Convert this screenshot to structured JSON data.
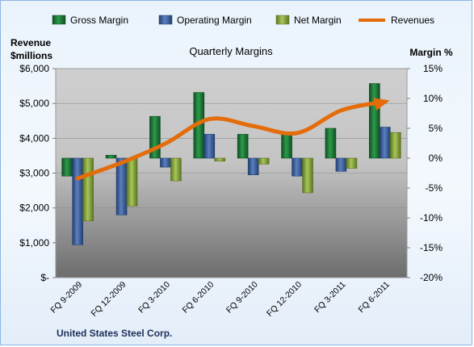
{
  "chart_data": {
    "type": "bar",
    "title": "Quarterly Margins",
    "company": "United States Steel Corp.",
    "categories": [
      "FQ 9-2009",
      "FQ 12-2009",
      "FQ 3-2010",
      "FQ 6-2010",
      "FQ 9-2010",
      "FQ 12-2010",
      "FQ 3-2011",
      "FQ 6-2011"
    ],
    "left_axis": {
      "label_line1": "Revenue",
      "label_line2": "$millions",
      "ticks": [
        "$-",
        "$1,000",
        "$2,000",
        "$3,000",
        "$4,000",
        "$5,000",
        "$6,000"
      ],
      "range": [
        0,
        6000
      ]
    },
    "right_axis": {
      "label": "Margin %",
      "ticks": [
        "-20%",
        "-15%",
        "-10%",
        "-5%",
        "0%",
        "5%",
        "10%",
        "15%"
      ],
      "range": [
        -20,
        15
      ]
    },
    "legend_position": "top",
    "grid": true,
    "series": [
      {
        "name": "Gross Margin",
        "kind": "bar",
        "axis": "right",
        "color": "#1e7b3a",
        "values": [
          -3.0,
          0.5,
          7.0,
          11.0,
          4.0,
          4.0,
          5.0,
          12.5
        ]
      },
      {
        "name": "Operating Margin",
        "kind": "bar",
        "axis": "right",
        "color": "#3a5e9e",
        "values": [
          -14.5,
          -9.5,
          -1.5,
          4.0,
          -2.8,
          -3.0,
          -2.2,
          5.2
        ]
      },
      {
        "name": "Net Margin",
        "kind": "bar",
        "axis": "right",
        "color": "#86a43c",
        "values": [
          -10.5,
          -8.0,
          -3.8,
          -0.5,
          -1.0,
          -5.8,
          -1.7,
          4.3
        ]
      },
      {
        "name": "Revenues",
        "kind": "line",
        "axis": "left",
        "color": "#e46c0a",
        "values": [
          2850,
          3300,
          3850,
          4550,
          4350,
          4150,
          4800,
          5050
        ]
      }
    ]
  }
}
